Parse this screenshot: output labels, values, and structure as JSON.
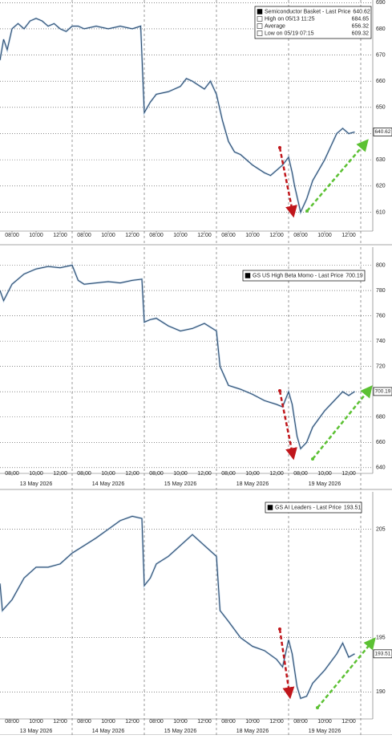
{
  "chart_data": [
    {
      "type": "line",
      "color": "#2b4a6b",
      "legend": [
        {
          "label": "Semiconductor Basket - Last Price",
          "value": 640.62
        },
        {
          "label": "High on 05/13 11:25",
          "value": 684.65
        },
        {
          "label": "Average",
          "value": 656.32
        },
        {
          "label": "Low on 05/19 07:15",
          "value": 609.32
        }
      ],
      "x": [
        0,
        0.3,
        0.6,
        1,
        1.5,
        2,
        2.5,
        3,
        3.5,
        4,
        4.5,
        5,
        5.5,
        6,
        6.5,
        7,
        8,
        9,
        10,
        11,
        11.7,
        12,
        12.5,
        13,
        14,
        15,
        15.5,
        16,
        17,
        17.5,
        18,
        18.5,
        19,
        19.5,
        20,
        21,
        22,
        22.5,
        23,
        23.5,
        24,
        24.3,
        24.5,
        25,
        25.5,
        26,
        27,
        27.5,
        28,
        28.5,
        29,
        29.5
      ],
      "values": [
        668,
        676,
        672,
        680,
        682,
        680,
        683,
        684,
        683,
        681,
        682,
        680,
        679,
        681,
        681,
        680,
        681,
        680,
        681,
        680,
        681,
        648,
        652,
        655,
        656,
        658,
        661,
        660,
        657,
        660,
        655,
        645,
        637,
        633,
        632,
        628,
        625,
        624,
        626,
        628,
        631,
        625,
        620,
        610,
        615,
        622,
        630,
        635,
        640,
        642,
        640,
        640.62
      ],
      "xlim": [
        0,
        31
      ],
      "ylim": [
        604,
        691
      ],
      "yticks": [
        610,
        620,
        630,
        640,
        650,
        660,
        670,
        680,
        690
      ],
      "xticks": [
        {
          "value": 1,
          "label": "08:00"
        },
        {
          "value": 3,
          "label": "10:00"
        },
        {
          "value": 5,
          "label": "12:00"
        },
        {
          "value": 7,
          "label": "08:00"
        },
        {
          "value": 9,
          "label": "10:00"
        },
        {
          "value": 11,
          "label": "12:00"
        },
        {
          "value": 13,
          "label": "08:00"
        },
        {
          "value": 15,
          "label": "10:00"
        },
        {
          "value": 17,
          "label": "12:00"
        },
        {
          "value": 19,
          "label": "08:00"
        },
        {
          "value": 21,
          "label": "10:00"
        },
        {
          "value": 23,
          "label": "12:00"
        },
        {
          "value": 25,
          "label": "08:00"
        },
        {
          "value": 27,
          "label": "10:00"
        },
        {
          "value": 29,
          "label": "12:00"
        }
      ],
      "xgrid": [
        6,
        12,
        18,
        24,
        30
      ]
    },
    {
      "type": "line",
      "color": "#2b4a6b",
      "legend": [
        {
          "label": "GS US High Beta Momo - Last Price",
          "value": 700.19
        }
      ],
      "x": [
        0,
        0.3,
        1,
        2,
        3,
        4,
        5,
        6,
        6.5,
        7,
        8,
        9,
        10,
        11,
        11.8,
        12,
        12.5,
        13,
        14,
        15,
        16,
        17,
        18,
        18.3,
        19,
        20,
        21,
        22,
        23,
        23.5,
        24,
        24.3,
        24.7,
        25,
        25.5,
        26,
        27,
        28,
        28.5,
        29,
        29.5
      ],
      "values": [
        780,
        772,
        785,
        793,
        797,
        799,
        798,
        800,
        788,
        785,
        786,
        787,
        786,
        788,
        789,
        755,
        757,
        758,
        752,
        748,
        750,
        754,
        748,
        720,
        705,
        702,
        698,
        693,
        690,
        688,
        700,
        690,
        665,
        655,
        660,
        672,
        685,
        695,
        700,
        697,
        700.19
      ],
      "xlim": [
        0,
        31
      ],
      "ylim": [
        638,
        813
      ],
      "yticks": [
        640,
        660,
        680,
        700,
        720,
        740,
        760,
        780,
        800
      ],
      "xticks": [
        {
          "value": 1,
          "label": "08:00"
        },
        {
          "value": 3,
          "label": "10:00"
        },
        {
          "value": 5,
          "label": "12:00"
        },
        {
          "value": 7,
          "label": "08:00"
        },
        {
          "value": 9,
          "label": "10:00"
        },
        {
          "value": 11,
          "label": "12:00"
        },
        {
          "value": 13,
          "label": "08:00"
        },
        {
          "value": 15,
          "label": "10:00"
        },
        {
          "value": 17,
          "label": "12:00"
        },
        {
          "value": 19,
          "label": "08:00"
        },
        {
          "value": 21,
          "label": "10:00"
        },
        {
          "value": 23,
          "label": "12:00"
        },
        {
          "value": 25,
          "label": "08:00"
        },
        {
          "value": 27,
          "label": "10:00"
        },
        {
          "value": 29,
          "label": "12:00"
        }
      ],
      "day_labels": [
        {
          "value": 3,
          "label": "13 May 2026"
        },
        {
          "value": 9,
          "label": "14 May 2026"
        },
        {
          "value": 15,
          "label": "15 May 2026"
        },
        {
          "value": 21,
          "label": "18 May 2026"
        },
        {
          "value": 27,
          "label": "19 May 2026"
        }
      ],
      "xgrid": [
        6,
        12,
        18,
        24,
        30
      ]
    },
    {
      "type": "line",
      "color": "#2b4a6b",
      "legend": [
        {
          "label": "GS AI Leaders - Last Price",
          "value": 193.51
        }
      ],
      "x": [
        0,
        0.2,
        1,
        2,
        3,
        4,
        5,
        6,
        7,
        8,
        9,
        10,
        11,
        11.8,
        12,
        12.5,
        13,
        14,
        15,
        16,
        17,
        18,
        18.3,
        19,
        20,
        21,
        22,
        23,
        23.5,
        24,
        24.3,
        24.7,
        25,
        25.5,
        26,
        27,
        28,
        28.5,
        29,
        29.5
      ],
      "values": [
        200,
        197.5,
        198.5,
        200.5,
        201.5,
        201.5,
        201.8,
        202.8,
        203.5,
        204.2,
        205,
        205.8,
        206.2,
        206,
        199.8,
        200.5,
        201.8,
        202.5,
        203.5,
        204.5,
        203.5,
        202.5,
        197.5,
        196.5,
        195,
        194.2,
        193.8,
        193,
        192.3,
        194.8,
        193.5,
        190.5,
        189.4,
        189.6,
        190.8,
        192,
        193.5,
        194.5,
        193.2,
        193.51
      ],
      "xlim": [
        0,
        31
      ],
      "ylim": [
        187.8,
        208.3
      ],
      "yticks": [
        190,
        195,
        205
      ],
      "xticks": [
        {
          "value": 1,
          "label": "08:00"
        },
        {
          "value": 3,
          "label": "10:00"
        },
        {
          "value": 5,
          "label": "12:00"
        },
        {
          "value": 7,
          "label": "08:00"
        },
        {
          "value": 9,
          "label": "10:00"
        },
        {
          "value": 11,
          "label": "12:00"
        },
        {
          "value": 13,
          "label": "08:00"
        },
        {
          "value": 15,
          "label": "10:00"
        },
        {
          "value": 17,
          "label": "12:00"
        },
        {
          "value": 19,
          "label": "08:00"
        },
        {
          "value": 21,
          "label": "10:00"
        },
        {
          "value": 23,
          "label": "12:00"
        },
        {
          "value": 25,
          "label": "08:00"
        },
        {
          "value": 27,
          "label": "10:00"
        },
        {
          "value": 29,
          "label": "12:00"
        }
      ],
      "day_labels": [
        {
          "value": 3,
          "label": "13 May 2026"
        },
        {
          "value": 9,
          "label": "14 May 2026"
        },
        {
          "value": 15,
          "label": "15 May 2026"
        },
        {
          "value": 21,
          "label": "18 May 2026"
        },
        {
          "value": 27,
          "label": "19 May 2026"
        }
      ],
      "xgrid": [
        6,
        12,
        18,
        24,
        30
      ]
    }
  ]
}
